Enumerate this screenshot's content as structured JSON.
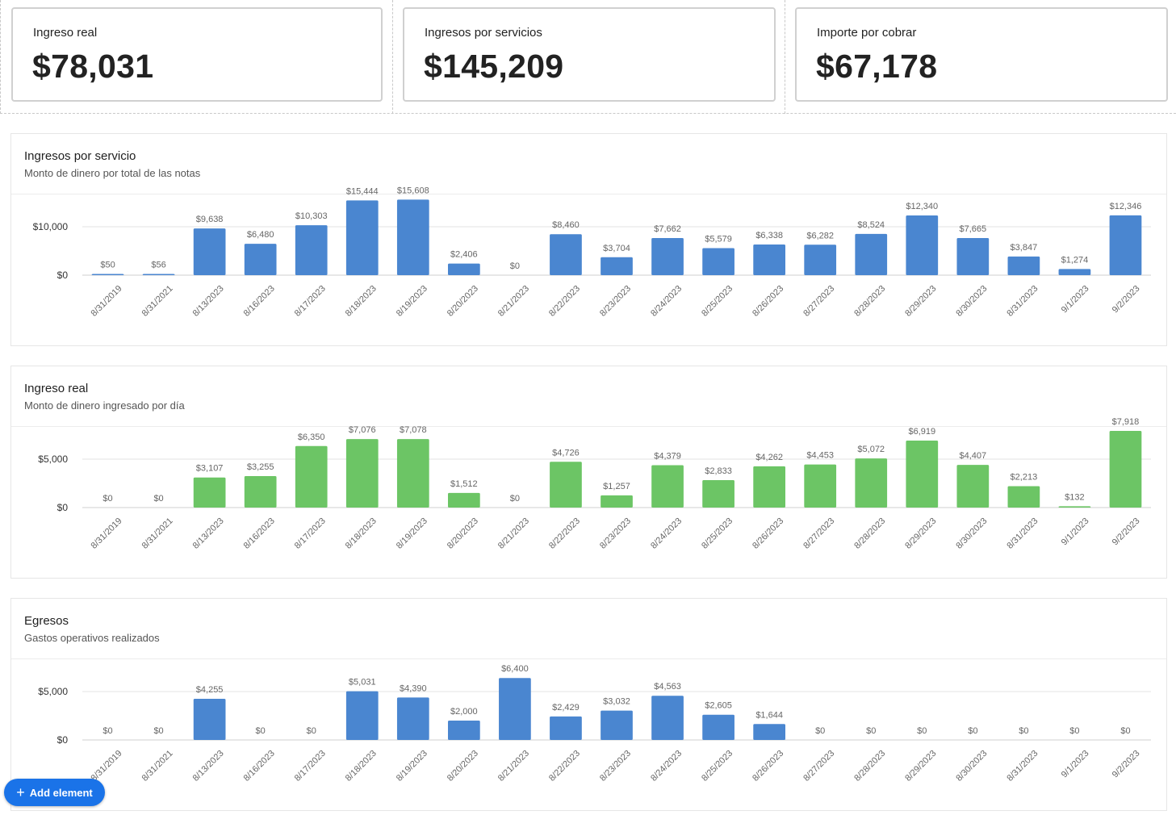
{
  "kpis": [
    {
      "label": "Ingreso real",
      "value": "$78,031"
    },
    {
      "label": "Ingresos por servicios",
      "value": "$145,209"
    },
    {
      "label": "Importe por cobrar",
      "value": "$67,178"
    }
  ],
  "panels": [
    {
      "title": "Ingresos por servicio",
      "subtitle": "Monto de dinero por total de las notas"
    },
    {
      "title": "Ingreso real",
      "subtitle": "Monto de dinero ingresado por día"
    },
    {
      "title": "Egresos",
      "subtitle": "Gastos operativos realizados"
    }
  ],
  "add_button": {
    "label": "Add element"
  },
  "chart_data": [
    {
      "type": "bar",
      "title": "Ingresos por servicio",
      "categories": [
        "8/31/2019",
        "8/31/2021",
        "8/13/2023",
        "8/16/2023",
        "8/17/2023",
        "8/18/2023",
        "8/19/2023",
        "8/20/2023",
        "8/21/2023",
        "8/22/2023",
        "8/23/2023",
        "8/24/2023",
        "8/25/2023",
        "8/26/2023",
        "8/27/2023",
        "8/28/2023",
        "8/29/2023",
        "8/30/2023",
        "8/31/2023",
        "9/1/2023",
        "9/2/2023"
      ],
      "values": [
        50,
        56,
        9638,
        6480,
        10303,
        15444,
        15608,
        2406,
        0,
        8460,
        3704,
        7662,
        5579,
        6338,
        6282,
        8524,
        12340,
        7665,
        3847,
        1274,
        12346
      ],
      "value_labels": [
        "$50",
        "$56",
        "$9,638",
        "$6,480",
        "$10,303",
        "$15,444",
        "$15,608",
        "$2,406",
        "$0",
        "$8,460",
        "$3,704",
        "$7,662",
        "$5,579",
        "$6,338",
        "$6,282",
        "$8,524",
        "$12,340",
        "$7,665",
        "$3,847",
        "$1,274",
        "$12,346"
      ],
      "yticks": [
        {
          "value": 0,
          "label": "$0"
        },
        {
          "value": 10000,
          "label": "$10,000"
        }
      ],
      "ylim": [
        0,
        20000
      ],
      "color": "#4a86d0"
    },
    {
      "type": "bar",
      "title": "Ingreso real",
      "categories": [
        "8/31/2019",
        "8/31/2021",
        "8/13/2023",
        "8/16/2023",
        "8/17/2023",
        "8/18/2023",
        "8/19/2023",
        "8/20/2023",
        "8/21/2023",
        "8/22/2023",
        "8/23/2023",
        "8/24/2023",
        "8/25/2023",
        "8/26/2023",
        "8/27/2023",
        "8/28/2023",
        "8/29/2023",
        "8/30/2023",
        "8/31/2023",
        "9/1/2023",
        "9/2/2023"
      ],
      "values": [
        0,
        0,
        3107,
        3255,
        6350,
        7076,
        7078,
        1512,
        0,
        4726,
        1257,
        4379,
        2833,
        4262,
        4453,
        5072,
        6919,
        4407,
        2213,
        132,
        7918
      ],
      "value_labels": [
        "$0",
        "$0",
        "$3,107",
        "$3,255",
        "$6,350",
        "$7,076",
        "$7,078",
        "$1,512",
        "$0",
        "$4,726",
        "$1,257",
        "$4,379",
        "$2,833",
        "$4,262",
        "$4,453",
        "$5,072",
        "$6,919",
        "$4,407",
        "$2,213",
        "$132",
        "$7,918"
      ],
      "yticks": [
        {
          "value": 0,
          "label": "$0"
        },
        {
          "value": 5000,
          "label": "$5,000"
        }
      ],
      "ylim": [
        0,
        10000
      ],
      "color": "#6cc565"
    },
    {
      "type": "bar",
      "title": "Egresos",
      "categories": [
        "8/31/2019",
        "8/31/2021",
        "8/13/2023",
        "8/16/2023",
        "8/17/2023",
        "8/18/2023",
        "8/19/2023",
        "8/20/2023",
        "8/21/2023",
        "8/22/2023",
        "8/23/2023",
        "8/24/2023",
        "8/25/2023",
        "8/26/2023",
        "8/27/2023",
        "8/28/2023",
        "8/29/2023",
        "8/30/2023",
        "8/31/2023",
        "9/1/2023",
        "9/2/2023"
      ],
      "values": [
        0,
        0,
        4255,
        0,
        0,
        5031,
        4390,
        2000,
        6400,
        2429,
        3032,
        4563,
        2605,
        1644,
        0,
        0,
        0,
        0,
        0,
        0,
        0
      ],
      "value_labels": [
        "$0",
        "$0",
        "$4,255",
        "$0",
        "$0",
        "$5,031",
        "$4,390",
        "$2,000",
        "$6,400",
        "$2,429",
        "$3,032",
        "$4,563",
        "$2,605",
        "$1,644",
        "$0",
        "$0",
        "$0",
        "$0",
        "$0",
        "$0",
        "$0"
      ],
      "yticks": [
        {
          "value": 0,
          "label": "$0"
        },
        {
          "value": 5000,
          "label": "$5,000"
        }
      ],
      "ylim": [
        0,
        10000
      ],
      "color": "#4a86d0"
    }
  ]
}
